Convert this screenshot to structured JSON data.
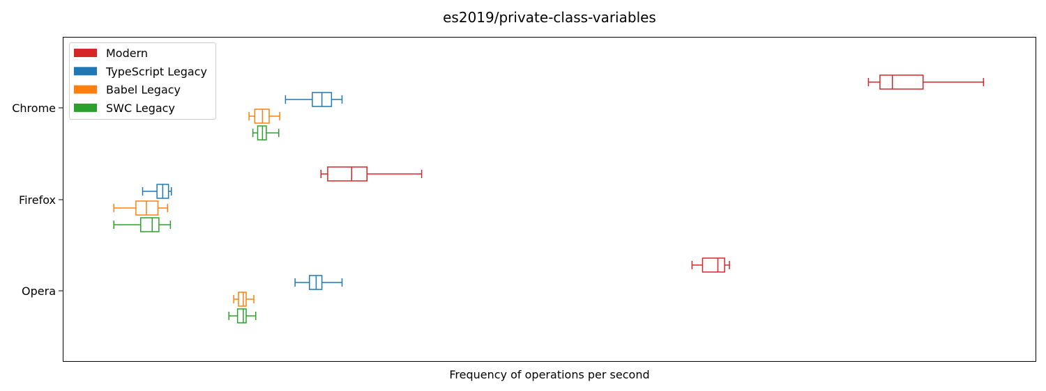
{
  "chart_data": {
    "type": "boxplot",
    "title": "es2019/private-class-variables",
    "xlabel": "Frequency of operations per second",
    "ylabel": "",
    "x_ticks_shown": false,
    "xlim": [
      0,
      1000
    ],
    "categories": [
      "Chrome",
      "Firefox",
      "Opera"
    ],
    "legend": {
      "placement": "top-left",
      "entries": [
        "Modern",
        "TypeScript Legacy",
        "Babel Legacy",
        "SWC Legacy"
      ]
    },
    "series": [
      {
        "name": "Modern",
        "color": "#d62728",
        "boxes": [
          {
            "category": "Chrome",
            "whislo": 833,
            "q1": 845,
            "med": 858,
            "q3": 890,
            "whishi": 953
          },
          {
            "category": "Firefox",
            "whislo": 262,
            "q1": 269,
            "med": 294,
            "q3": 310,
            "whishi": 367
          },
          {
            "category": "Opera",
            "whislo": 649,
            "q1": 660,
            "med": 676,
            "q3": 683,
            "whishi": 688
          }
        ]
      },
      {
        "name": "TypeScript Legacy",
        "color": "#1f77b4",
        "boxes": [
          {
            "category": "Chrome",
            "whislo": 225,
            "q1": 253,
            "med": 263,
            "q3": 273,
            "whishi": 284
          },
          {
            "category": "Firefox",
            "whislo": 76,
            "q1": 91,
            "med": 97,
            "q3": 103,
            "whishi": 106
          },
          {
            "category": "Opera",
            "whislo": 235,
            "q1": 250,
            "med": 257,
            "q3": 263,
            "whishi": 284
          }
        ]
      },
      {
        "name": "Babel Legacy",
        "color": "#ff7f0e",
        "boxes": [
          {
            "category": "Chrome",
            "whislo": 187,
            "q1": 193,
            "med": 201,
            "q3": 208,
            "whishi": 219
          },
          {
            "category": "Firefox",
            "whislo": 46,
            "q1": 69,
            "med": 80,
            "q3": 92,
            "whishi": 102
          },
          {
            "category": "Opera",
            "whislo": 171,
            "q1": 176,
            "med": 181,
            "q3": 184,
            "whishi": 192
          }
        ]
      },
      {
        "name": "SWC Legacy",
        "color": "#2ca02c",
        "boxes": [
          {
            "category": "Chrome",
            "whislo": 191,
            "q1": 196,
            "med": 201,
            "q3": 205,
            "whishi": 218
          },
          {
            "category": "Firefox",
            "whislo": 46,
            "q1": 74,
            "med": 86,
            "q3": 93,
            "whishi": 105
          },
          {
            "category": "Opera",
            "whislo": 166,
            "q1": 175,
            "med": 181,
            "q3": 184,
            "whishi": 194
          }
        ]
      }
    ]
  }
}
